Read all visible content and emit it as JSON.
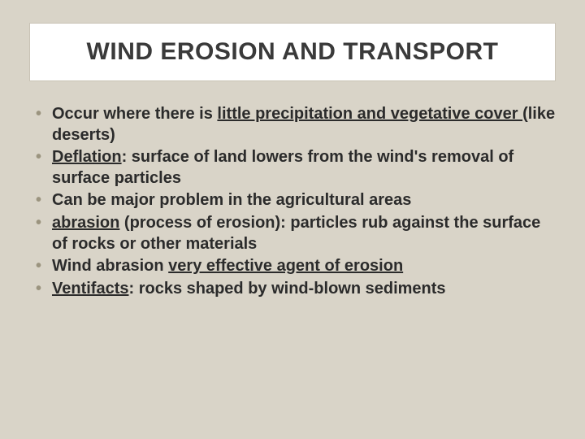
{
  "slide": {
    "background_color": "#d9d4c8",
    "title_box": {
      "background_color": "#ffffff",
      "border_color": "#c9c3b5"
    },
    "title": "WIND EROSION AND TRANSPORT",
    "title_fontsize": 30,
    "bullet_color": "#9b947f",
    "text_color": "#2b2b2b",
    "body_fontsize": 20,
    "bullets": [
      {
        "segments": [
          {
            "text": "Occur where there is ",
            "underline": false
          },
          {
            "text": "little precipitation and vegetative cover ",
            "underline": true
          },
          {
            "text": "(like deserts)",
            "underline": false
          }
        ]
      },
      {
        "segments": [
          {
            "text": "Deflation",
            "underline": true
          },
          {
            "text": ": surface of land lowers from the wind's removal of surface particles",
            "underline": false
          }
        ]
      },
      {
        "segments": [
          {
            "text": "Can be major problem in the agricultural areas",
            "underline": false
          }
        ]
      },
      {
        "segments": [
          {
            "text": "abrasion",
            "underline": true
          },
          {
            "text": " (process of erosion): particles rub against the surface of rocks or other materials",
            "underline": false
          }
        ]
      },
      {
        "segments": [
          {
            "text": "Wind abrasion ",
            "underline": false
          },
          {
            "text": "very effective agent of erosion",
            "underline": true
          }
        ]
      },
      {
        "segments": [
          {
            "text": "Ventifacts",
            "underline": true
          },
          {
            "text": ": rocks shaped by wind-blown sediments",
            "underline": false
          }
        ]
      }
    ]
  }
}
